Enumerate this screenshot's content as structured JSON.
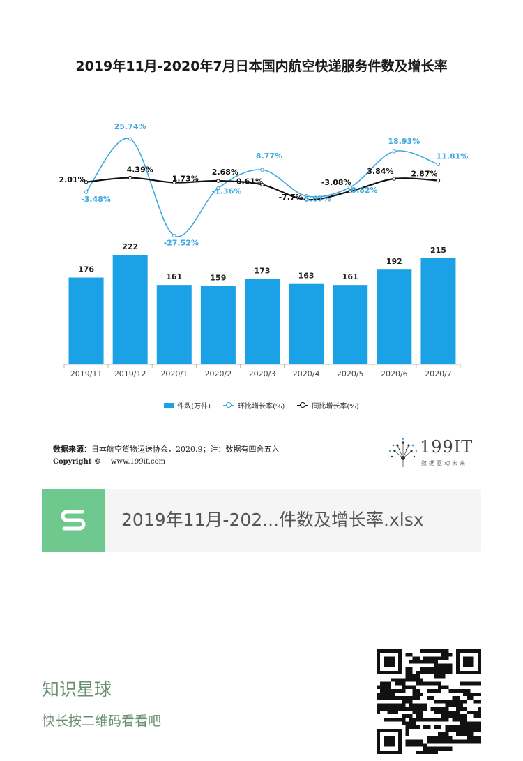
{
  "chart_data": {
    "type": "bar",
    "title": "2019年11月-2020年7月日本国内航空快递服务件数及增长率",
    "categories": [
      "2019/11",
      "2019/12",
      "2020/1",
      "2020/2",
      "2020/3",
      "2020/4",
      "2020/5",
      "2020/6",
      "2020/7"
    ],
    "series": [
      {
        "name": "件数(万件)",
        "type": "bar",
        "values": [
          176,
          222,
          161,
          159,
          173,
          163,
          161,
          192,
          215
        ],
        "labels": [
          "176",
          "222",
          "161",
          "159",
          "173",
          "163",
          "161",
          "192",
          "215"
        ],
        "color": "#1aa1e6"
      },
      {
        "name": "环比增长率(%)",
        "type": "line",
        "values": [
          -3.48,
          25.74,
          -27.52,
          -1.36,
          8.77,
          -5.67,
          -0.82,
          18.93,
          11.81
        ],
        "labels": [
          "-3.48%",
          "25.74%",
          "-27.52%",
          "-1.36%",
          "8.77%",
          "-5.67%",
          "-0.82%",
          "18.93%",
          "11.81%"
        ],
        "color": "#3ea8e0"
      },
      {
        "name": "同比增长率(%)",
        "type": "line",
        "values": [
          2.01,
          4.39,
          1.73,
          2.68,
          0.61,
          -7.7,
          -3.08,
          3.84,
          2.87
        ],
        "labels": [
          "2.01%",
          "4.39%",
          "1.73%",
          "2.68%",
          "0.61%",
          "-7.7%",
          "-3.08%",
          "3.84%",
          "2.87%"
        ],
        "color": "#111111"
      }
    ],
    "legend_placement": "bottom-center",
    "grid": false
  },
  "legend": {
    "bar_label": "件数(万件)",
    "mom_label": "环比增长率(%)",
    "yoy_label": "同比增长率(%)"
  },
  "source": {
    "label": "数据来源：",
    "text": "日本航空货物运送协会，2020.9；注：数据有四舍五入"
  },
  "copyright": {
    "label": "Copyright ©",
    "url": "www.199it.com"
  },
  "logo": {
    "text": "199IT",
    "tagline": "数据驱动未来"
  },
  "file_card": {
    "icon": "spreadsheet-s-icon",
    "file_name": "2019年11月-202...件数及增长率.xlsx"
  },
  "footer": {
    "title": "知识星球",
    "subtitle": "快长按二维码看看吧"
  },
  "colors": {
    "bar": "#1aa1e6",
    "mom_line": "#3ea8e0",
    "yoy_line": "#111111",
    "file_icon_bg": "#6fc98e",
    "footer_text": "#6a8f73"
  }
}
